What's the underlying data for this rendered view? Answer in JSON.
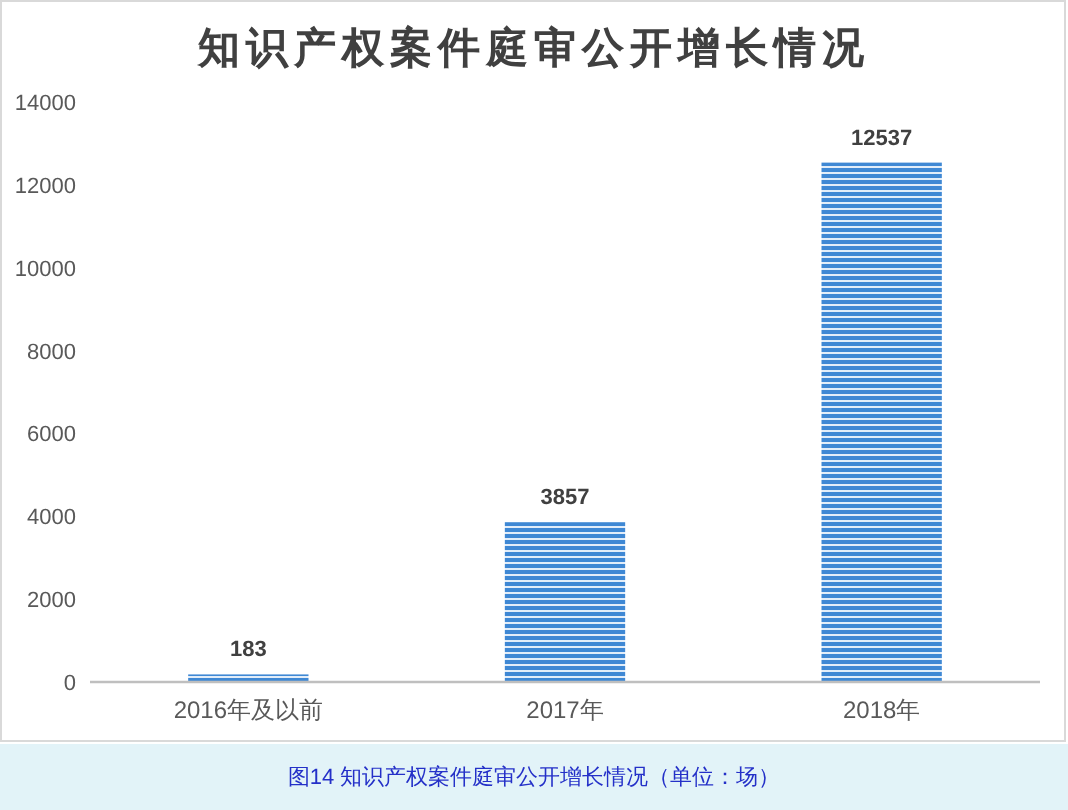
{
  "chart_data": {
    "type": "bar",
    "title": "知识产权案件庭审公开增长情况",
    "categories": [
      "2016年及以前",
      "2017年",
      "2018年"
    ],
    "values": [
      183,
      3857,
      12537
    ],
    "color": "#3f88d4",
    "ylim": [
      0,
      14000
    ],
    "yticks": [
      0,
      2000,
      4000,
      6000,
      8000,
      10000,
      12000,
      14000
    ],
    "data_labels": true,
    "annotations": [
      "图14 知识产权案件庭审公开增长情况（单位：场）"
    ]
  }
}
